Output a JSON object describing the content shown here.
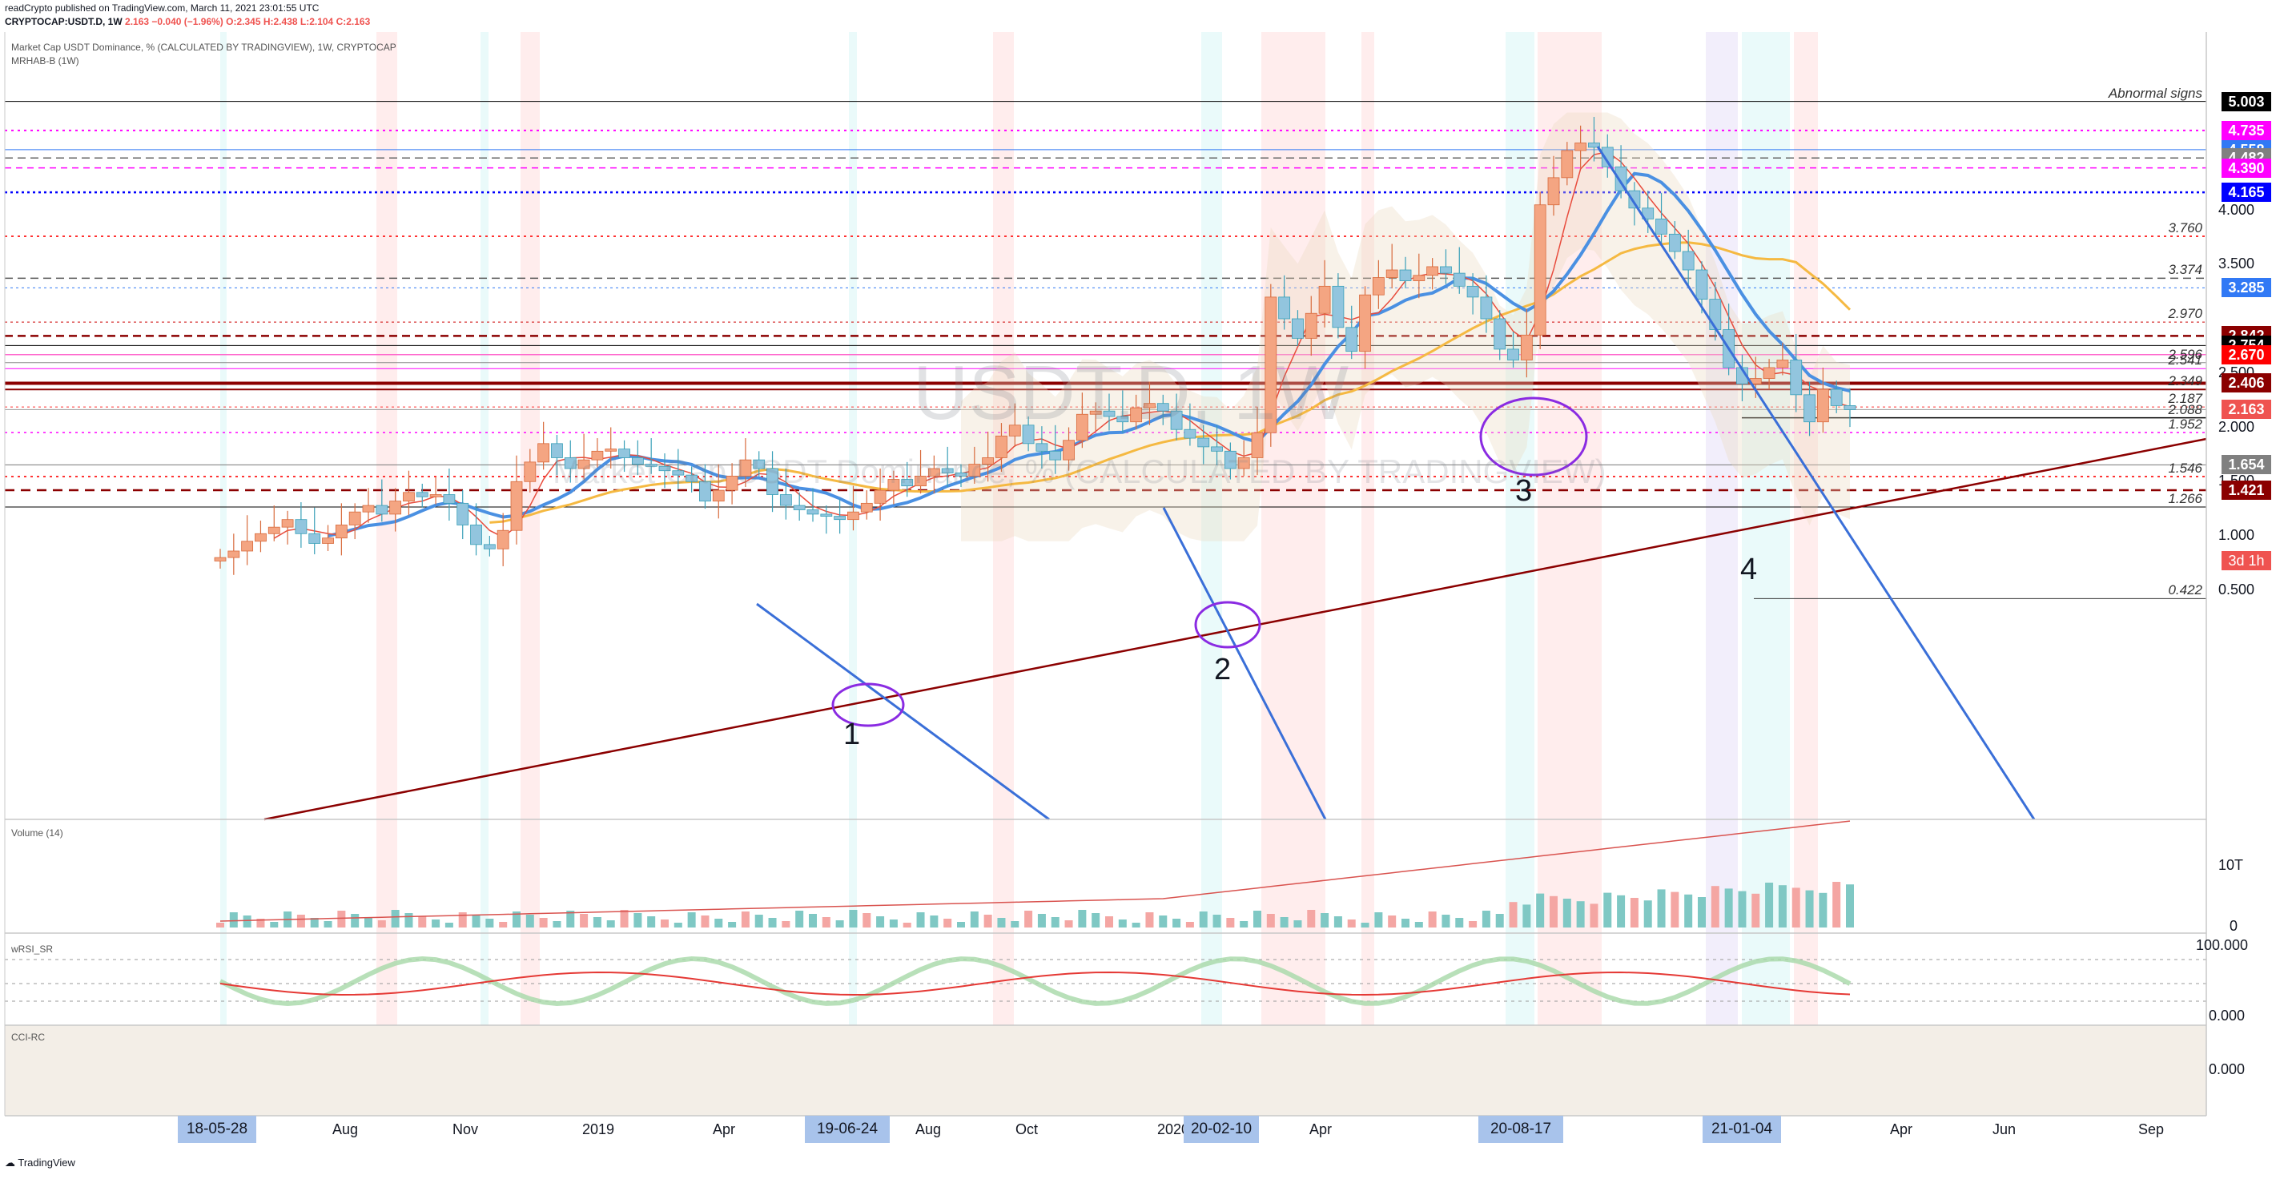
{
  "header": {
    "publisher": "readCrypto published on TradingView.com, March 11, 2021 23:01:55 UTC",
    "symbol": "CRYPTOCAP:USDT.D, 1W",
    "last": "2.163",
    "change": "−0.040 (−1.96%)",
    "ohlc": "O:2.345 H:2.438 L:2.104 C:2.163"
  },
  "panes": {
    "main_title": "Market Cap USDT Dominance, % (CALCULATED BY TRADINGVIEW), 1W, CRYPTOCAP",
    "main_study": "MRHAB-B (1W)",
    "volume": "Volume (14)",
    "rsi": "wRSI_SR",
    "cci": "CCI-RC"
  },
  "watermark": {
    "symbol": "USDT.D, 1W",
    "name": "Market Cap USDT Dominance, % (CALCULATED BY TRADINGVIEW)"
  },
  "annotations": [
    "1",
    "2",
    "3",
    "4"
  ],
  "price_axis": [
    "4.000",
    "3.500",
    "2.500",
    "2.000",
    "1.500",
    "1.000",
    "0.500"
  ],
  "price_tags": [
    {
      "v": "5.003",
      "bg": "#000000",
      "fg": "#ffffff"
    },
    {
      "v": "4.735",
      "bg": "#ff00ff",
      "fg": "#ffffff"
    },
    {
      "v": "4.558",
      "bg": "#3179f5",
      "fg": "#ffffff"
    },
    {
      "v": "4.482",
      "bg": "#808080",
      "fg": "#ffffff"
    },
    {
      "v": "4.390",
      "bg": "#ff00ff",
      "fg": "#ffffff"
    },
    {
      "v": "4.165",
      "bg": "#0000ff",
      "fg": "#ffffff"
    },
    {
      "v": "3.285",
      "bg": "#3179f5",
      "fg": "#ffffff"
    },
    {
      "v": "2.842",
      "bg": "#8b0000",
      "fg": "#ffffff"
    },
    {
      "v": "2.754",
      "bg": "#000000",
      "fg": "#ffffff"
    },
    {
      "v": "2.670",
      "bg": "#ff0000",
      "fg": "#ffffff"
    },
    {
      "v": "2.406",
      "bg": "#8b0000",
      "fg": "#ffffff"
    },
    {
      "v": "2.163",
      "bg": "#ef5350",
      "fg": "#ffffff"
    },
    {
      "v": "1.654",
      "bg": "#808080",
      "fg": "#ffffff"
    },
    {
      "v": "1.421",
      "bg": "#8b0000",
      "fg": "#ffffff"
    }
  ],
  "countdown": "3d 1h",
  "level_labels": [
    {
      "t": "Abnormal signs",
      "v": 5.003
    },
    {
      "t": "3.760",
      "v": 3.76
    },
    {
      "t": "3.374",
      "v": 3.374
    },
    {
      "t": "2.970",
      "v": 2.97
    },
    {
      "t": "2.596",
      "v": 2.596
    },
    {
      "t": "2.541",
      "v": 2.541
    },
    {
      "t": "2.349",
      "v": 2.349
    },
    {
      "t": "2.187",
      "v": 2.187
    },
    {
      "t": "2.088",
      "v": 2.088
    },
    {
      "t": "1.952",
      "v": 1.952
    },
    {
      "t": "1.546",
      "v": 1.546
    },
    {
      "t": "1.266",
      "v": 1.266
    },
    {
      "t": "0.422",
      "v": 0.422
    }
  ],
  "volume_axis": [
    "10T",
    "0"
  ],
  "rsi_axis": [
    "100.000",
    "0.000"
  ],
  "cci_axis": [
    "0.000"
  ],
  "time_axis": [
    "Aug",
    "Nov",
    "2019",
    "Apr",
    "Aug",
    "Oct",
    "2020",
    "Apr",
    "Jul",
    "o",
    "Apr",
    "Jun",
    "Sep"
  ],
  "time_boxes": [
    "18-05-28",
    "19-06-24",
    "20-02-10",
    "20-08-17",
    "21-01-04"
  ],
  "footer": "TradingView",
  "chart_data": {
    "type": "candlestick",
    "title": "Market Cap USDT Dominance, % (CALCULATED BY TRADINGVIEW), 1W, CRYPTOCAP",
    "ylabel": "%",
    "ylim": [
      0.3,
      5.3
    ],
    "x_start": "2018-05-28",
    "x_end": "2021-03-08",
    "close": [
      0.8,
      0.86,
      0.95,
      1.02,
      1.08,
      1.15,
      1.02,
      0.93,
      0.98,
      1.1,
      1.22,
      1.28,
      1.2,
      1.32,
      1.4,
      1.36,
      1.38,
      1.3,
      1.1,
      0.92,
      0.88,
      1.05,
      1.5,
      1.68,
      1.85,
      1.72,
      1.62,
      1.7,
      1.78,
      1.8,
      1.72,
      1.66,
      1.64,
      1.6,
      1.56,
      1.5,
      1.32,
      1.42,
      1.55,
      1.7,
      1.62,
      1.38,
      1.28,
      1.24,
      1.2,
      1.18,
      1.15,
      1.22,
      1.3,
      1.42,
      1.52,
      1.46,
      1.55,
      1.62,
      1.58,
      1.55,
      1.66,
      1.72,
      1.92,
      2.02,
      1.85,
      1.78,
      1.7,
      1.88,
      2.12,
      2.15,
      2.1,
      2.05,
      2.18,
      2.22,
      2.15,
      1.98,
      1.9,
      1.82,
      1.78,
      1.62,
      1.72,
      1.95,
      3.2,
      3.0,
      2.82,
      3.05,
      3.3,
      2.92,
      2.7,
      3.22,
      3.38,
      3.45,
      3.35,
      3.4,
      3.48,
      3.42,
      3.3,
      3.2,
      3.0,
      2.72,
      2.62,
      2.85,
      4.05,
      4.3,
      4.55,
      4.62,
      4.58,
      4.4,
      4.18,
      4.02,
      3.92,
      3.78,
      3.62,
      3.45,
      3.18,
      2.9,
      2.55,
      2.4,
      2.45,
      2.55,
      2.62,
      2.3,
      2.05,
      2.35,
      2.2,
      2.163
    ],
    "series": [
      {
        "name": "MRHAB-B (1W)"
      },
      {
        "name": "Volume (14)"
      },
      {
        "name": "wRSI_SR"
      },
      {
        "name": "CCI-RC"
      }
    ],
    "horizontal_levels": [
      5.003,
      4.735,
      4.558,
      4.482,
      4.39,
      4.165,
      3.76,
      3.374,
      3.285,
      2.97,
      2.842,
      2.754,
      2.67,
      2.596,
      2.541,
      2.406,
      2.349,
      2.187,
      2.163,
      2.088,
      1.952,
      1.654,
      1.546,
      1.421,
      1.266,
      0.422
    ],
    "grid": false,
    "legend": "top-left"
  }
}
